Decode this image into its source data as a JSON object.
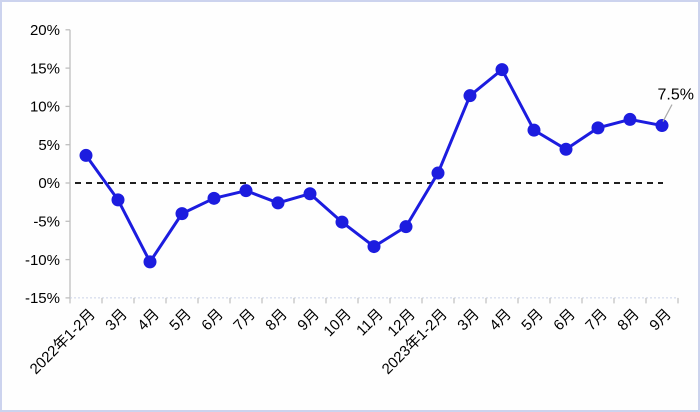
{
  "chart_data": {
    "type": "line",
    "title": "",
    "xlabel": "",
    "ylabel": "",
    "categories": [
      "2022年1-2月",
      "3月",
      "4月",
      "5月",
      "6月",
      "7月",
      "8月",
      "9月",
      "10月",
      "11月",
      "12月",
      "2023年1-2月",
      "3月",
      "4月",
      "5月",
      "6月",
      "7月",
      "8月",
      "9月"
    ],
    "values": [
      3.6,
      -2.2,
      -10.3,
      -4.0,
      -2.0,
      -1.0,
      -2.6,
      -1.4,
      -5.1,
      -8.3,
      -5.7,
      1.3,
      11.4,
      14.8,
      6.9,
      4.4,
      7.2,
      8.3,
      7.5
    ],
    "ylim": [
      -15,
      20
    ],
    "ytick_step": 5,
    "ytick_labels": [
      "20%",
      "15%",
      "10%",
      "5%",
      "0%",
      "-5%",
      "-10%",
      "-15%"
    ],
    "grid": false,
    "zero_line": "dashed",
    "legend": "none",
    "annotation": {
      "text": "7.5%",
      "point_index": 18
    },
    "colors": {
      "line": "#1c1cdf",
      "marker": "#1c1cdf",
      "zero_line": "#000000",
      "axis": "#bfbfbf",
      "x_axis_line": "#ccd3e8",
      "annotation_leader": "#a9a9a9",
      "text": "#000000",
      "background": "#fefefe",
      "frame_border": "#ccd3ee"
    }
  }
}
